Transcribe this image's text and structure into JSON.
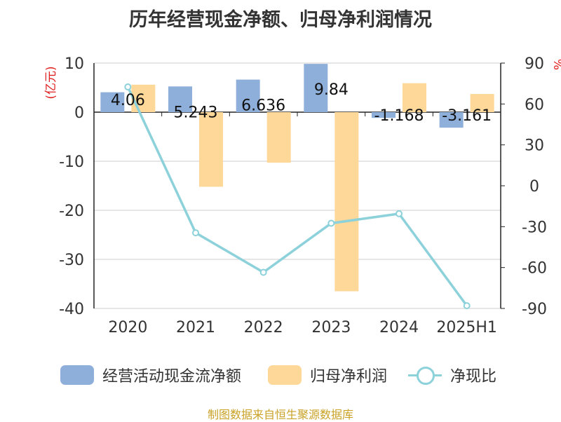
{
  "source_note": "制图数据来自恒生聚源数据库",
  "chart_data": {
    "type": "bar",
    "title": "历年经营现金净额、归母净利润情况",
    "categories": [
      "2020",
      "2021",
      "2022",
      "2023",
      "2024",
      "2025H1"
    ],
    "series": [
      {
        "name": "经营活动现金流净额",
        "kind": "bar",
        "axis": "left",
        "color": "#8FAFDB",
        "values": [
          4.06,
          5.243,
          6.636,
          9.84,
          -1.168,
          -3.161
        ],
        "labels": [
          "4.06",
          "5.243",
          "6.636",
          "9.84",
          "-1.168",
          "-3.161"
        ]
      },
      {
        "name": "归母净利润",
        "kind": "bar",
        "axis": "left",
        "color": "#FDD899",
        "values": [
          5.6,
          -15.2,
          -10.3,
          -36.5,
          5.9,
          3.7
        ]
      },
      {
        "name": "净现比",
        "kind": "line",
        "axis": "right",
        "color": "#8DD1DA",
        "values": [
          72.5,
          -34.5,
          -63.5,
          -27.5,
          -20.5,
          -88.0
        ]
      }
    ],
    "ylabel": "(亿元)",
    "ylim": [
      -40,
      10
    ],
    "yticks": [
      "10",
      "0",
      "-10",
      "-20",
      "-30",
      "-40"
    ],
    "y2label": "%",
    "y2lim": [
      -90,
      90
    ],
    "y2ticks": [
      "90",
      "60",
      "30",
      "0",
      "-30",
      "-60",
      "-90"
    ],
    "grid": true,
    "legend_position": "bottom"
  }
}
